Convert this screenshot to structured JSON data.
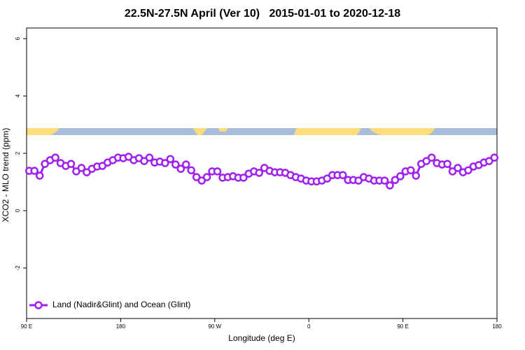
{
  "chart_data": {
    "type": "line",
    "title": "22.5N-27.5N April (Ver 10)   2015-01-01 to 2020-12-18",
    "x_label": "Longitude (deg E)",
    "y_label": "XCO2 - MLO trend (ppm)",
    "x": [
      92.5,
      97.5,
      102.5,
      107.5,
      112.5,
      117.5,
      122.5,
      127.5,
      132.5,
      137.5,
      142.5,
      147.5,
      152.5,
      157.5,
      162.5,
      167.5,
      172.5,
      177.5,
      182.5,
      187.5,
      192.5,
      197.5,
      202.5,
      207.5,
      212.5,
      217.5,
      222.5,
      227.5,
      232.5,
      237.5,
      242.5,
      247.5,
      252.5,
      257.5,
      262.5,
      267.5,
      272.5,
      277.5,
      282.5,
      287.5,
      292.5,
      297.5,
      302.5,
      307.5,
      312.5,
      317.5,
      322.5,
      327.5,
      332.5,
      337.5,
      342.5,
      347.5,
      352.5,
      357.5,
      362.5,
      367.5,
      372.5,
      377.5,
      382.5,
      387.5,
      392.5,
      397.5,
      402.5,
      407.5,
      412.5,
      417.5,
      422.5,
      427.5,
      432.5,
      437.5,
      442.5,
      447.5,
      452.5,
      457.5,
      462.5,
      467.5,
      472.5,
      477.5,
      482.5,
      487.5,
      492.5,
      497.5,
      502.5,
      507.5,
      512.5,
      517.5,
      522.5,
      527.5,
      532.5,
      537.5
    ],
    "series": [
      {
        "name": "Land (Nadir&Glint) and Ocean (Glint)",
        "color": "#a020f0",
        "values": [
          1.39,
          1.39,
          1.22,
          1.63,
          1.76,
          1.85,
          1.66,
          1.56,
          1.63,
          1.37,
          1.49,
          1.34,
          1.46,
          1.54,
          1.56,
          1.68,
          1.76,
          1.85,
          1.83,
          1.88,
          1.76,
          1.83,
          1.73,
          1.85,
          1.68,
          1.71,
          1.66,
          1.8,
          1.61,
          1.46,
          1.61,
          1.41,
          1.17,
          1.05,
          1.17,
          1.37,
          1.37,
          1.15,
          1.17,
          1.2,
          1.15,
          1.15,
          1.29,
          1.37,
          1.32,
          1.49,
          1.39,
          1.34,
          1.34,
          1.32,
          1.24,
          1.17,
          1.12,
          1.05,
          1.02,
          1.02,
          1.05,
          1.12,
          1.24,
          1.24,
          1.24,
          1.07,
          1.07,
          1.05,
          1.17,
          1.12,
          1.05,
          1.05,
          1.05,
          0.88,
          1.07,
          1.2,
          1.37,
          1.41,
          1.22,
          1.63,
          1.73,
          1.85,
          1.66,
          1.61,
          1.63,
          1.37,
          1.49,
          1.34,
          1.41,
          1.54,
          1.59,
          1.68,
          1.73,
          1.85
        ]
      }
    ],
    "xlim": [
      90,
      540
    ],
    "xticks": [
      {
        "value": 90,
        "label": "90 E"
      },
      180,
      {
        "value": 270,
        "label": "90 W"
      },
      {
        "value": 360,
        "label": "0"
      },
      {
        "value": 450,
        "label": "90 E"
      },
      {
        "value": 540,
        "label": "180"
      }
    ],
    "ylim": [
      -3.76,
      6.37
    ],
    "yticks": [
      -2,
      0,
      2,
      4,
      6
    ],
    "legend": "bottom-left"
  }
}
